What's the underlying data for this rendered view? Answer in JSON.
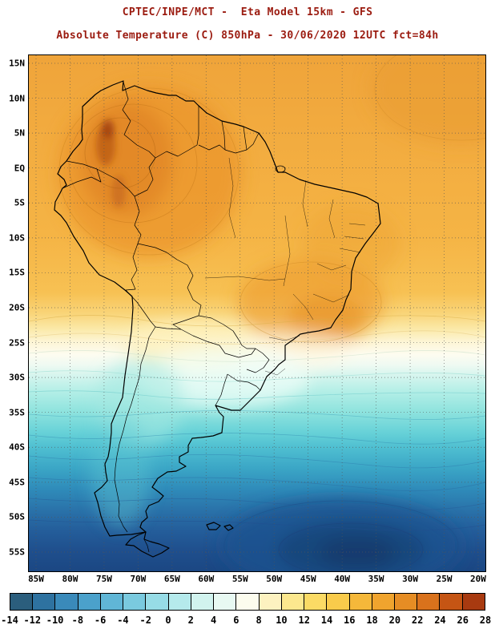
{
  "header": {
    "line1": "CPTEC/INPE/MCT -  Eta Model 15km - GFS",
    "line2": "Absolute Temperature (C) 850hPa - 30/06/2020 12UTC fct=84h"
  },
  "map": {
    "lat_labels": [
      "15N",
      "10N",
      "5N",
      "EQ",
      "5S",
      "10S",
      "15S",
      "20S",
      "25S",
      "30S",
      "35S",
      "40S",
      "45S",
      "50S",
      "55S"
    ],
    "lon_labels": [
      "85W",
      "80W",
      "75W",
      "70W",
      "65W",
      "60W",
      "55W",
      "50W",
      "45W",
      "40W",
      "35W",
      "30W",
      "25W",
      "20W"
    ]
  },
  "colorbar": {
    "tick_values": [
      -14,
      -12,
      -10,
      -8,
      -6,
      -4,
      -2,
      0,
      2,
      4,
      6,
      8,
      10,
      12,
      14,
      16,
      18,
      20,
      22,
      24,
      26,
      28
    ],
    "cell_colors": [
      "#2b5e7d",
      "#2e72a0",
      "#3a8aba",
      "#4ba1cb",
      "#60b6d6",
      "#7acadf",
      "#97dce6",
      "#b5eaec",
      "#d1f3ee",
      "#e8f9f2",
      "#fcfcee",
      "#fdf2c0",
      "#fce88e",
      "#fbdb65",
      "#f9cb4b",
      "#f5b83a",
      "#f0a42e",
      "#e68d24",
      "#d9721c",
      "#c55514",
      "#a83a10"
    ]
  },
  "colors": {
    "title_text": "#9b1b10",
    "frame": "#000000",
    "warm_north": "#efa43a",
    "cold_south": "#1b4783"
  }
}
